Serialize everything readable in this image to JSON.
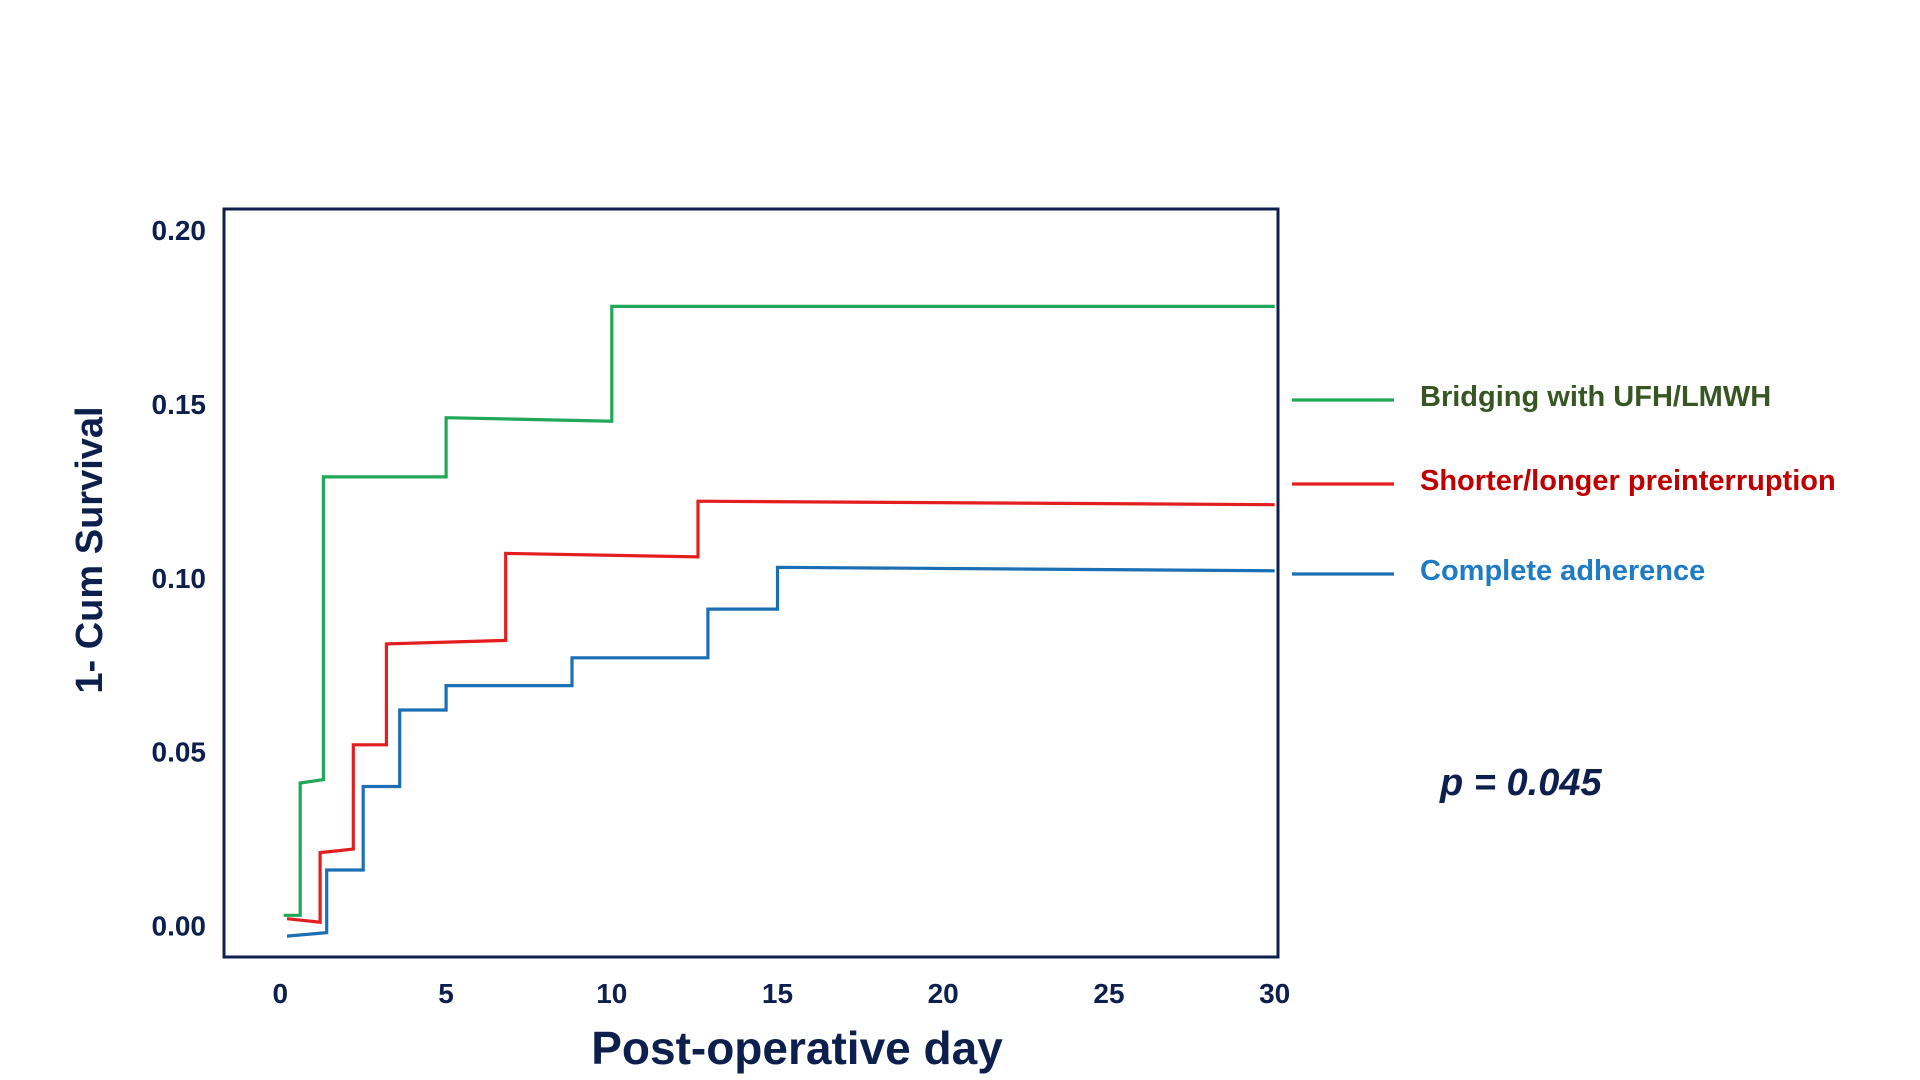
{
  "chart_data": {
    "type": "line",
    "step": true,
    "xlabel": "Post-operative day",
    "ylabel": "1- Cum Survival",
    "xlim": [
      -1.7,
      30.1
    ],
    "ylim": [
      -0.009,
      0.206
    ],
    "xticks": [
      0,
      5,
      10,
      15,
      20,
      25,
      30
    ],
    "yticks": [
      0.0,
      0.05,
      0.1,
      0.15,
      0.2
    ],
    "xtick_labels": [
      "0",
      "5",
      "10",
      "15",
      "20",
      "25",
      "30"
    ],
    "ytick_labels": [
      "0.00",
      "0.05",
      "0.10",
      "0.15",
      "0.20"
    ],
    "legend_placement": "right",
    "grid": false,
    "annotation": "p = 0.045",
    "axis_color": "#0d1f4d",
    "series": [
      {
        "name": "Bridging with UFH/LMWH",
        "color": "#1fa855",
        "label_color": "#375623",
        "points": [
          [
            0.1,
            0.003
          ],
          [
            0.6,
            0.003
          ],
          [
            0.6,
            0.041
          ],
          [
            1.3,
            0.042
          ],
          [
            1.3,
            0.129
          ],
          [
            5.0,
            0.129
          ],
          [
            5.0,
            0.146
          ],
          [
            10.0,
            0.145
          ],
          [
            10.0,
            0.178
          ],
          [
            30.0,
            0.178
          ]
        ]
      },
      {
        "name": "Shorter/longer preinterruption",
        "color": "#e31e1e",
        "label_color": "#c00000",
        "points": [
          [
            0.2,
            0.002
          ],
          [
            1.2,
            0.001
          ],
          [
            1.2,
            0.021
          ],
          [
            2.2,
            0.022
          ],
          [
            2.2,
            0.052
          ],
          [
            3.2,
            0.052
          ],
          [
            3.2,
            0.081
          ],
          [
            6.8,
            0.082
          ],
          [
            6.8,
            0.107
          ],
          [
            12.6,
            0.106
          ],
          [
            12.6,
            0.122
          ],
          [
            30.0,
            0.121
          ]
        ]
      },
      {
        "name": "Complete adherence",
        "color": "#1b6fb5",
        "label_color": "#1f7bc4",
        "points": [
          [
            0.2,
            -0.003
          ],
          [
            1.4,
            -0.002
          ],
          [
            1.4,
            0.016
          ],
          [
            2.5,
            0.016
          ],
          [
            2.5,
            0.04
          ],
          [
            3.6,
            0.04
          ],
          [
            3.6,
            0.062
          ],
          [
            5.0,
            0.062
          ],
          [
            5.0,
            0.069
          ],
          [
            8.8,
            0.069
          ],
          [
            8.8,
            0.077
          ],
          [
            12.9,
            0.077
          ],
          [
            12.9,
            0.091
          ],
          [
            15.0,
            0.091
          ],
          [
            15.0,
            0.103
          ],
          [
            30.0,
            0.102
          ]
        ]
      }
    ]
  }
}
